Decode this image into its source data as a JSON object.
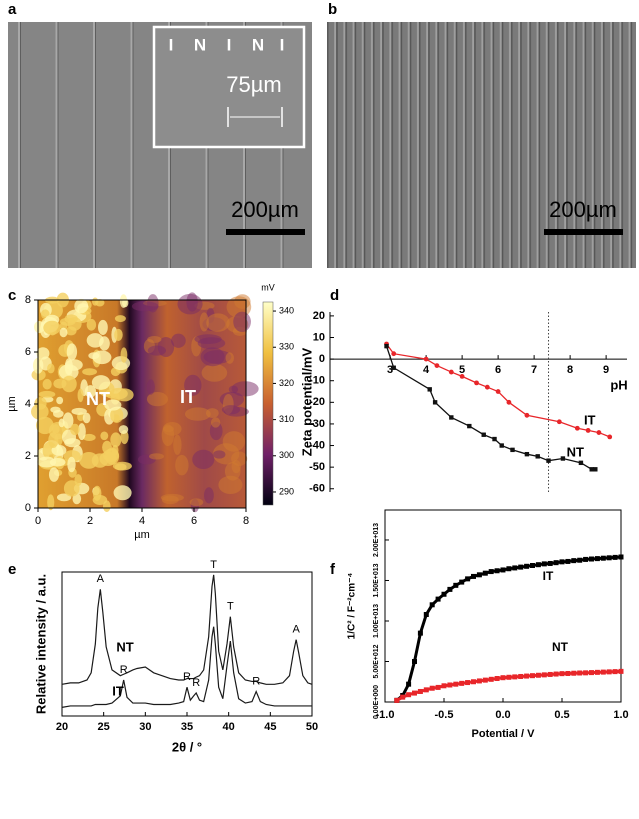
{
  "images": [
    {
      "panel": "a",
      "scale_bar": "200µm",
      "inset": {
        "marks": [
          "I",
          "N",
          "I",
          "N",
          "I"
        ],
        "scale_bar": "75µm"
      }
    },
    {
      "panel": "b",
      "scale_bar": "200µm"
    }
  ],
  "chart_data": [
    {
      "type": "map",
      "panel": "c",
      "xlabel": "µm",
      "ylabel": "µm",
      "xlim": [
        0,
        8
      ],
      "ylim": [
        0,
        8
      ],
      "xticks": [
        0,
        2,
        4,
        6,
        8
      ],
      "yticks": [
        0,
        2,
        4,
        6,
        8
      ],
      "colorbar": {
        "title": "mV",
        "lim": [
          286.4,
          342.5
        ],
        "ticks": [
          290,
          300,
          310,
          320,
          330,
          340
        ]
      },
      "annotations": [
        "NT",
        "IT"
      ]
    },
    {
      "type": "line",
      "panel": "d",
      "ylabel": "Zeta potential/mV",
      "xlabel": "pH",
      "frame": false,
      "xlim": [
        1.33,
        9.58
      ],
      "ylim": [
        -61.5,
        21.8
      ],
      "xticks": [
        3,
        4,
        5,
        6,
        7,
        8,
        9
      ],
      "yticks": [
        20,
        10,
        0,
        -10,
        -20,
        -30,
        -40,
        -50,
        -60
      ],
      "vline": 7.4,
      "series": [
        {
          "name": "IT",
          "color": "#e8262a",
          "marker": "circle",
          "x": [
            2.9,
            3.1,
            4.0,
            4.3,
            4.7,
            5.0,
            5.4,
            5.7,
            6.0,
            6.3,
            6.8,
            7.7,
            8.2,
            8.5,
            8.8,
            9.1
          ],
          "values": [
            7,
            2.5,
            0,
            -3,
            -6,
            -8,
            -11,
            -13,
            -15,
            -20,
            -26,
            -29,
            -32,
            -33,
            -34,
            -36
          ]
        },
        {
          "name": "NT",
          "color": "#111111",
          "marker": "square",
          "x": [
            2.9,
            3.1,
            4.1,
            4.25,
            4.7,
            5.2,
            5.6,
            5.9,
            6.1,
            6.4,
            6.8,
            7.1,
            7.4,
            7.8,
            8.3,
            8.6,
            8.7
          ],
          "values": [
            6,
            -4,
            -14,
            -20,
            -27,
            -31,
            -35,
            -37,
            -40,
            -42,
            -44,
            -45,
            -47,
            -46,
            -48,
            -51,
            -51
          ]
        }
      ]
    },
    {
      "type": "line",
      "panel": "e",
      "ylabel": "Relative intensity / a.u.",
      "xlabel": "2θ / °",
      "frame": true,
      "xlim": [
        20,
        50
      ],
      "ylim": [
        0,
        100
      ],
      "xticks": [
        20,
        25,
        30,
        35,
        40,
        45,
        50
      ],
      "x": [
        20,
        21,
        22,
        23,
        23.5,
        24,
        24.3,
        24.6,
        24.9,
        25.3,
        26,
        27,
        27.4,
        27.8,
        28.5,
        29,
        30,
        31,
        32,
        33,
        34,
        34.6,
        35,
        35.4,
        35.8,
        36.1,
        36.5,
        37,
        37.6,
        38,
        38.2,
        38.4,
        38.8,
        39.3,
        39.8,
        40.2,
        40.6,
        41.2,
        42,
        42.8,
        43.3,
        43.8,
        44.5,
        45.5,
        46.5,
        47.3,
        47.8,
        48.1,
        48.4,
        48.9,
        49.5,
        50
      ],
      "series": [
        {
          "name": "NT",
          "color": "#1a1a1a",
          "values": [
            22,
            23,
            23,
            25,
            30,
            50,
            75,
            88,
            72,
            48,
            32,
            28,
            29,
            30,
            32,
            33,
            34,
            30,
            28,
            26,
            25,
            25,
            26,
            26,
            26,
            27,
            28,
            32,
            55,
            90,
            98,
            85,
            45,
            32,
            50,
            69,
            48,
            30,
            25,
            24,
            24,
            23,
            22,
            22,
            23,
            28,
            45,
            53,
            44,
            28,
            23,
            22
          ],
          "peaks": [
            {
              "label": "A",
              "x": 24.6
            },
            {
              "label": "T",
              "x": 38.2
            },
            {
              "label": "T",
              "x": 40.2
            },
            {
              "label": "A",
              "x": 48.1
            }
          ]
        },
        {
          "name": "IT",
          "color": "#1a1a1a",
          "values": [
            6,
            7,
            7,
            7,
            7,
            8,
            8,
            8,
            8,
            8,
            9,
            14,
            25,
            13,
            9,
            9,
            9,
            8,
            8,
            8,
            9,
            10,
            20,
            11,
            14,
            16,
            11,
            10,
            25,
            55,
            62,
            50,
            20,
            12,
            35,
            52,
            30,
            12,
            9,
            10,
            17,
            10,
            8,
            7,
            7,
            7,
            7,
            7,
            7,
            7,
            7,
            7
          ],
          "peaks": [
            {
              "label": "R",
              "x": 27.4
            },
            {
              "label": "R",
              "x": 35
            },
            {
              "label": "R",
              "x": 36.1
            },
            {
              "label": "R",
              "x": 43.3
            }
          ]
        }
      ]
    },
    {
      "type": "scatter",
      "panel": "f",
      "ylabel": "1/C² / F⁻²cm⁻⁴",
      "xlabel": "Potential / V",
      "xlim": [
        -1,
        1
      ],
      "ylim": [
        0,
        23700000000000.0
      ],
      "xticks": [
        {
          "value": -1,
          "label": "-1.0"
        },
        -0.5,
        {
          "value": 0,
          "label": "0.0"
        },
        0.5,
        {
          "value": 1,
          "label": "1.0"
        }
      ],
      "yticks": [
        {
          "value": 0,
          "label": "0.00E+000"
        },
        {
          "value": 5000000000000.0,
          "label": "5.00E+012"
        },
        {
          "value": 10000000000000.0,
          "label": "1.00E+013"
        },
        {
          "value": 15000000000000.0,
          "label": "1.50E+013"
        },
        {
          "value": 20000000000000.0,
          "label": "2.00E+013"
        }
      ],
      "x": [
        -0.9,
        -0.85,
        -0.8,
        -0.75,
        -0.7,
        -0.65,
        -0.6,
        -0.55,
        -0.5,
        -0.45,
        -0.4,
        -0.35,
        -0.3,
        -0.25,
        -0.2,
        -0.15,
        -0.1,
        -0.05,
        0,
        0.05,
        0.1,
        0.15,
        0.2,
        0.25,
        0.3,
        0.35,
        0.4,
        0.45,
        0.5,
        0.55,
        0.6,
        0.65,
        0.7,
        0.75,
        0.8,
        0.85,
        0.9,
        0.95,
        1
      ],
      "series": [
        {
          "name": "IT",
          "color": "#000000",
          "values": [
            200000000000.0,
            800000000000.0,
            2200000000000.0,
            5000000000000.0,
            8500000000000.0,
            10800000000000.0,
            12000000000000.0,
            12700000000000.0,
            13300000000000.0,
            13900000000000.0,
            14400000000000.0,
            14800000000000.0,
            15200000000000.0,
            15500000000000.0,
            15700000000000.0,
            15900000000000.0,
            16100000000000.0,
            16200000000000.0,
            16300000000000.0,
            16450000000000.0,
            16550000000000.0,
            16650000000000.0,
            16750000000000.0,
            16850000000000.0,
            16950000000000.0,
            17050000000000.0,
            17100000000000.0,
            17200000000000.0,
            17300000000000.0,
            17350000000000.0,
            17450000000000.0,
            17500000000000.0,
            17600000000000.0,
            17650000000000.0,
            17700000000000.0,
            17750000000000.0,
            17800000000000.0,
            17850000000000.0,
            17900000000000.0
          ]
        },
        {
          "name": "NT",
          "color": "#e8262a",
          "values": [
            200000000000.0,
            600000000000.0,
            900000000000.0,
            1100000000000.0,
            1300000000000.0,
            1500000000000.0,
            1700000000000.0,
            1800000000000.0,
            2000000000000.0,
            2100000000000.0,
            2200000000000.0,
            2300000000000.0,
            2400000000000.0,
            2500000000000.0,
            2600000000000.0,
            2700000000000.0,
            2800000000000.0,
            2900000000000.0,
            3000000000000.0,
            3050000000000.0,
            3100000000000.0,
            3150000000000.0,
            3200000000000.0,
            3250000000000.0,
            3300000000000.0,
            3350000000000.0,
            3400000000000.0,
            3450000000000.0,
            3500000000000.0,
            3520000000000.0,
            3550000000000.0,
            3580000000000.0,
            3600000000000.0,
            3630000000000.0,
            3660000000000.0,
            3690000000000.0,
            3720000000000.0,
            3750000000000.0,
            3780000000000.0
          ]
        }
      ]
    }
  ]
}
